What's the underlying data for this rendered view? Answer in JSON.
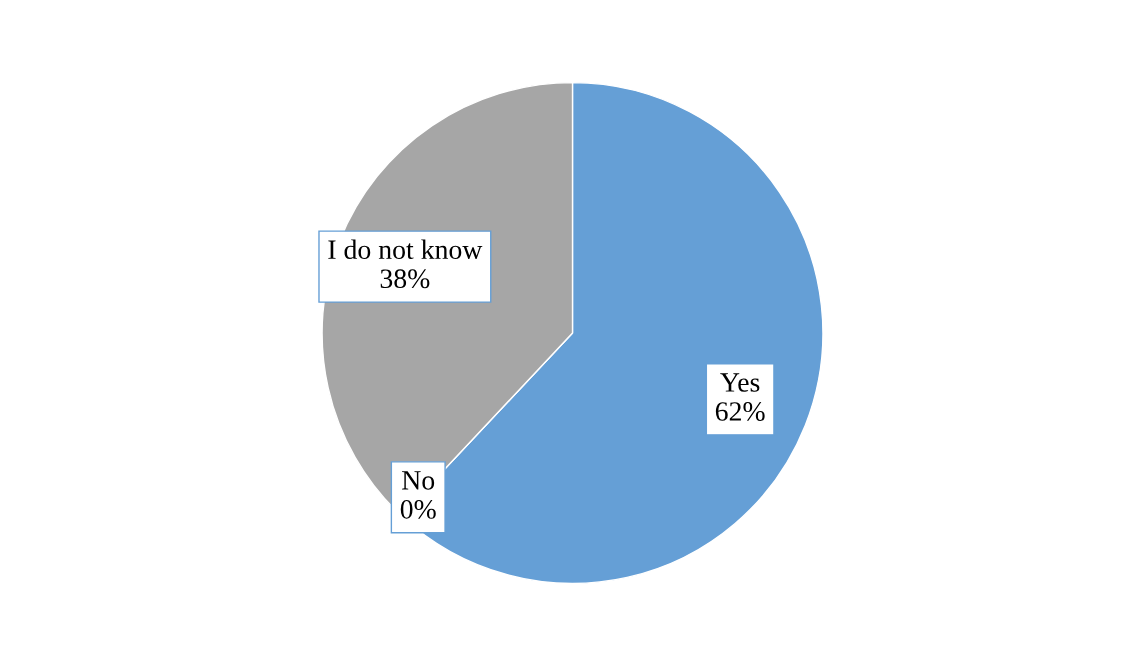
{
  "chart_data": {
    "type": "pie",
    "categories": [
      "Yes",
      "No",
      "I do not know"
    ],
    "values": [
      62,
      0,
      38
    ],
    "value_labels": [
      "62%",
      "0%",
      "38%"
    ],
    "colors": [
      "#659fd6",
      "#d0703a",
      "#a6a6a6"
    ]
  }
}
